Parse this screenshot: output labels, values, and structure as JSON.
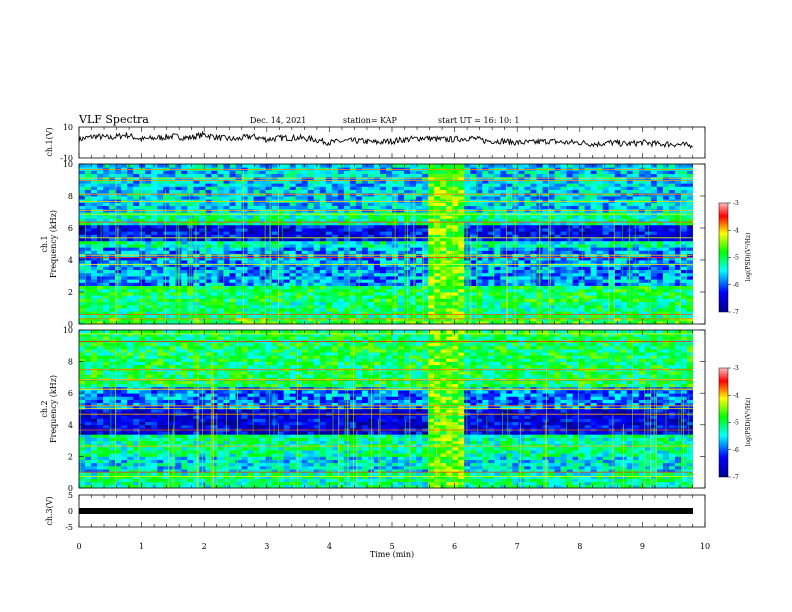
{
  "header": {
    "title": "VLF Spectra",
    "date": "Dec. 14, 2021",
    "station": "station= KAP",
    "start": "start  UT =   16: 10: 1"
  },
  "chart_data": [
    {
      "type": "line",
      "panel": "ch1-waveform",
      "ylabel": "ch.1(V)",
      "ylim": [
        -10,
        10
      ],
      "yticks": [
        "10",
        "-10"
      ],
      "xlim": [
        0,
        10
      ],
      "x": [
        0.0,
        0.25,
        0.5,
        0.75,
        1.0,
        1.25,
        1.5,
        1.75,
        2.0,
        2.25,
        2.5,
        2.75,
        3.0,
        3.25,
        3.5,
        3.75,
        4.0,
        4.25,
        4.5,
        4.75,
        5.0,
        5.25,
        5.5,
        5.75,
        6.0,
        6.25,
        6.5,
        6.75,
        7.0,
        7.25,
        7.5,
        7.75,
        8.0,
        8.25,
        8.5,
        8.75,
        9.0,
        9.25,
        9.5,
        9.75,
        9.8
      ],
      "values": [
        2,
        4,
        3,
        5,
        2,
        3,
        4,
        3,
        5,
        3,
        2,
        4,
        2,
        3,
        3,
        2,
        0,
        1,
        1,
        0,
        1,
        2,
        3,
        2,
        2,
        3,
        1,
        1,
        0,
        0,
        1,
        0,
        0,
        -1,
        0,
        -1,
        0,
        -1,
        -1,
        -2,
        -1
      ]
    },
    {
      "type": "heatmap",
      "panel": "ch1-spectrogram",
      "ylabel": [
        "ch.1",
        "Frequency  (kHz)"
      ],
      "xlim": [
        0,
        10
      ],
      "ylim": [
        0,
        10
      ],
      "yticks": [
        "0",
        "2",
        "4",
        "6",
        "8",
        "10"
      ],
      "colorbar": {
        "label": "log(PSD)(V²/Hz)",
        "ticks": [
          "-3",
          "-4",
          "-5",
          "-6",
          "-7"
        ],
        "range": [
          -7,
          -3
        ]
      },
      "bands": [
        {
          "f0": 0.0,
          "f1": 0.5,
          "level": -4.8
        },
        {
          "f0": 0.5,
          "f1": 1.5,
          "level": -5.1
        },
        {
          "f0": 1.5,
          "f1": 2.5,
          "level": -5.0
        },
        {
          "f0": 2.5,
          "f1": 4.8,
          "level": -5.8
        },
        {
          "f0": 4.8,
          "f1": 5.3,
          "level": -5.3
        },
        {
          "f0": 5.3,
          "f1": 6.3,
          "level": -6.4
        },
        {
          "f0": 6.3,
          "f1": 7.0,
          "level": -5.2
        },
        {
          "f0": 7.0,
          "f1": 10.0,
          "level": -5.6
        }
      ],
      "event": {
        "t0": 5.6,
        "t1": 6.2,
        "level": -4.6
      }
    },
    {
      "type": "heatmap",
      "panel": "ch2-spectrogram",
      "ylabel": [
        "ch.2",
        "Frequency  (kHz)"
      ],
      "xlim": [
        0,
        10
      ],
      "ylim": [
        0,
        10
      ],
      "yticks": [
        "0",
        "2",
        "4",
        "6",
        "8",
        "10"
      ],
      "colorbar": {
        "label": "log(PSD)(V²/Hz)",
        "ticks": [
          "-3",
          "-4",
          "-5",
          "-6",
          "-7"
        ],
        "range": [
          -7,
          -3
        ]
      },
      "bands": [
        {
          "f0": 0.0,
          "f1": 1.0,
          "level": -5.2
        },
        {
          "f0": 1.0,
          "f1": 2.0,
          "level": -5.5
        },
        {
          "f0": 2.0,
          "f1": 3.5,
          "level": -5.2
        },
        {
          "f0": 3.5,
          "f1": 5.0,
          "level": -6.5
        },
        {
          "f0": 5.0,
          "f1": 6.5,
          "level": -5.9
        },
        {
          "f0": 6.5,
          "f1": 10.0,
          "level": -5.0
        }
      ],
      "event": {
        "t0": 5.6,
        "t1": 6.2,
        "level": -4.6
      }
    },
    {
      "type": "line",
      "panel": "ch3-waveform",
      "ylabel": "ch.3(V)",
      "ylim": [
        -5,
        5
      ],
      "yticks": [
        "5",
        "0",
        "-5"
      ],
      "xlim": [
        0,
        10
      ],
      "xticks": [
        "0",
        "1",
        "2",
        "3",
        "4",
        "5",
        "6",
        "7",
        "8",
        "9",
        "10"
      ],
      "xlabel": "Time  (min)",
      "x": [
        0,
        9.8
      ],
      "values": [
        0,
        0
      ]
    }
  ],
  "colors": {
    "colormap": [
      "#00008f",
      "#0000ff",
      "#00ffff",
      "#00ff00",
      "#ffff00",
      "#ff0000",
      "#ffc0c0"
    ],
    "frame": "#000000",
    "trace": "#000000"
  }
}
